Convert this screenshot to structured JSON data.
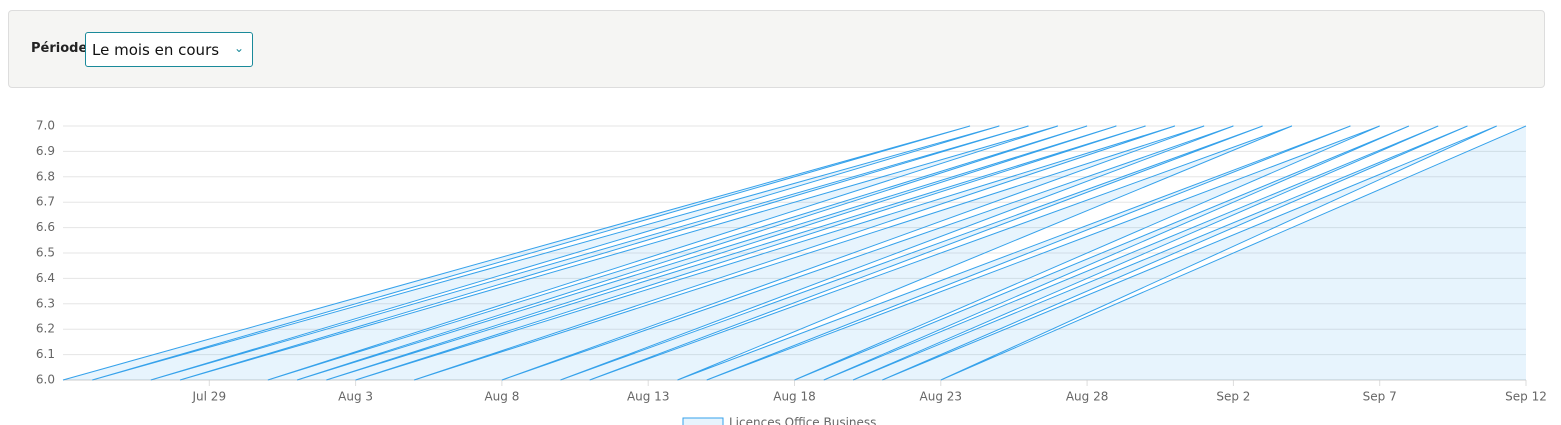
{
  "filter": {
    "label": "Période :",
    "value": "Le mois en cours"
  },
  "chart_data": {
    "type": "line",
    "x": [
      "Jul 24",
      "Aug 24",
      "Jul 25",
      "Aug 25",
      "Jul 27",
      "Aug 26",
      "Jul 28",
      "Aug 27",
      "Jul 31",
      "Aug 28",
      "Aug 1",
      "Aug 29",
      "Aug 2",
      "Aug 30",
      "Aug 3",
      "Aug 31",
      "Aug 5",
      "Sep 1",
      "Aug 8",
      "Sep 2",
      "Aug 10",
      "Sep 3",
      "Aug 11",
      "Sep 4",
      "Aug 14",
      "Sep 6",
      "Aug 15",
      "Sep 7",
      "Aug 18",
      "Sep 8",
      "Aug 19",
      "Sep 9",
      "Aug 20",
      "Sep 10",
      "Aug 21",
      "Sep 11",
      "Aug 23",
      "Sep 12"
    ],
    "series": [
      {
        "name": "Licences Office Business",
        "color": "#36a2eb",
        "fill": "rgba(54,162,235,0.12)",
        "values": [
          6,
          7,
          6,
          7,
          6,
          7,
          6,
          7,
          6,
          7,
          6,
          7,
          6,
          7,
          6,
          7,
          6,
          7,
          6,
          7,
          6,
          7,
          6,
          7,
          6,
          7,
          6,
          7,
          6,
          7,
          6,
          7,
          6,
          7,
          6,
          7,
          6,
          7
        ]
      }
    ],
    "xlim": [
      "Jul 24",
      "Sep 12"
    ],
    "xticks": [
      "Jul 29",
      "Aug 3",
      "Aug 8",
      "Aug 13",
      "Aug 18",
      "Aug 23",
      "Aug 28",
      "Sep 2",
      "Sep 7",
      "Sep 12"
    ],
    "ylim": [
      6,
      7
    ],
    "yticks": [
      {
        "value": 6,
        "label": "6.0"
      },
      6.1,
      6.2,
      6.3,
      6.4,
      6.5,
      6.6,
      6.7,
      6.8,
      6.9,
      {
        "value": 7,
        "label": "7.0"
      }
    ],
    "grid": true
  }
}
